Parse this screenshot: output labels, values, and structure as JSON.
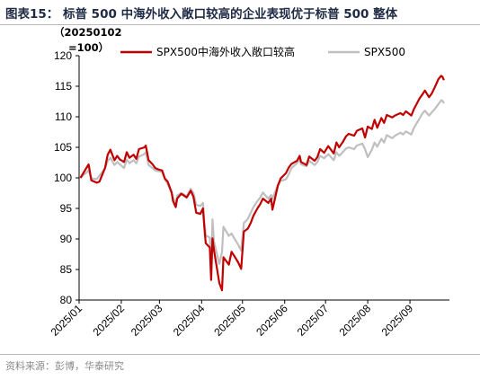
{
  "figure": {
    "title": "图表15：  标普 500 中海外收入敞口较高的企业表现优于标普 500 整体",
    "source": "资料来源：彭博，华泰研究"
  },
  "chart_data": {
    "type": "line",
    "ylabel_lines": [
      "（20250102",
      "=100）"
    ],
    "ylim": [
      80,
      120
    ],
    "yticks": [
      80,
      85,
      90,
      95,
      100,
      105,
      110,
      115,
      120
    ],
    "xlim": [
      "2025-01-01",
      "2025-09-30"
    ],
    "xticks": [
      {
        "date": "2025-01-01",
        "label": "2025/01"
      },
      {
        "date": "2025-02-01",
        "label": "2025/02"
      },
      {
        "date": "2025-03-01",
        "label": "2025/03"
      },
      {
        "date": "2025-04-01",
        "label": "2025/04"
      },
      {
        "date": "2025-05-01",
        "label": "2025/05"
      },
      {
        "date": "2025-06-01",
        "label": "2025/06"
      },
      {
        "date": "2025-07-01",
        "label": "2025/07"
      },
      {
        "date": "2025-08-01",
        "label": "2025/08"
      },
      {
        "date": "2025-09-01",
        "label": "2025/09"
      }
    ],
    "legend_position": "top",
    "series": [
      {
        "name": "SPX500中海外收入敞口较高",
        "color": "#c00000",
        "points": [
          [
            "2025-01-02",
            100.0
          ],
          [
            "2025-01-06",
            101.5
          ],
          [
            "2025-01-08",
            102.2
          ],
          [
            "2025-01-10",
            99.6
          ],
          [
            "2025-01-14",
            99.2
          ],
          [
            "2025-01-16",
            99.4
          ],
          [
            "2025-01-20",
            101.6
          ],
          [
            "2025-01-22",
            103.8
          ],
          [
            "2025-01-24",
            104.6
          ],
          [
            "2025-01-27",
            102.9
          ],
          [
            "2025-01-29",
            103.6
          ],
          [
            "2025-01-31",
            103.0
          ],
          [
            "2025-02-03",
            102.6
          ],
          [
            "2025-02-05",
            104.2
          ],
          [
            "2025-02-07",
            103.3
          ],
          [
            "2025-02-10",
            103.8
          ],
          [
            "2025-02-12",
            103.1
          ],
          [
            "2025-02-14",
            104.7
          ],
          [
            "2025-02-18",
            105.0
          ],
          [
            "2025-02-19",
            105.3
          ],
          [
            "2025-02-21",
            102.9
          ],
          [
            "2025-02-24",
            102.2
          ],
          [
            "2025-02-26",
            101.6
          ],
          [
            "2025-02-28",
            101.4
          ],
          [
            "2025-03-03",
            101.2
          ],
          [
            "2025-03-05",
            99.9
          ],
          [
            "2025-03-07",
            99.4
          ],
          [
            "2025-03-10",
            97.6
          ],
          [
            "2025-03-11",
            96.2
          ],
          [
            "2025-03-13",
            95.2
          ],
          [
            "2025-03-14",
            96.6
          ],
          [
            "2025-03-17",
            97.4
          ],
          [
            "2025-03-19",
            97.1
          ],
          [
            "2025-03-21",
            96.8
          ],
          [
            "2025-03-24",
            97.9
          ],
          [
            "2025-03-26",
            96.9
          ],
          [
            "2025-03-28",
            94.3
          ],
          [
            "2025-03-31",
            94.1
          ],
          [
            "2025-04-02",
            95.0
          ],
          [
            "2025-04-03",
            91.8
          ],
          [
            "2025-04-04",
            89.3
          ],
          [
            "2025-04-07",
            88.6
          ],
          [
            "2025-04-08",
            83.3
          ],
          [
            "2025-04-09",
            90.1
          ],
          [
            "2025-04-10",
            88.2
          ],
          [
            "2025-04-14",
            82.8
          ],
          [
            "2025-04-16",
            81.6
          ],
          [
            "2025-04-17",
            87.0
          ],
          [
            "2025-04-21",
            85.8
          ],
          [
            "2025-04-23",
            87.9
          ],
          [
            "2025-04-25",
            87.2
          ],
          [
            "2025-04-28",
            86.1
          ],
          [
            "2025-04-30",
            85.1
          ],
          [
            "2025-05-02",
            91.2
          ],
          [
            "2025-05-05",
            91.7
          ],
          [
            "2025-05-07",
            92.6
          ],
          [
            "2025-05-09",
            93.8
          ],
          [
            "2025-05-12",
            95.0
          ],
          [
            "2025-05-14",
            95.7
          ],
          [
            "2025-05-16",
            96.6
          ],
          [
            "2025-05-20",
            95.9
          ],
          [
            "2025-05-22",
            96.6
          ],
          [
            "2025-05-23",
            94.8
          ],
          [
            "2025-05-27",
            98.7
          ],
          [
            "2025-05-29",
            99.9
          ],
          [
            "2025-06-02",
            100.8
          ],
          [
            "2025-06-04",
            101.7
          ],
          [
            "2025-06-06",
            102.3
          ],
          [
            "2025-06-10",
            102.8
          ],
          [
            "2025-06-12",
            103.6
          ],
          [
            "2025-06-13",
            102.6
          ],
          [
            "2025-06-17",
            102.1
          ],
          [
            "2025-06-19",
            103.5
          ],
          [
            "2025-06-23",
            102.8
          ],
          [
            "2025-06-25",
            103.4
          ],
          [
            "2025-06-27",
            104.7
          ],
          [
            "2025-06-30",
            104.1
          ],
          [
            "2025-07-03",
            105.2
          ],
          [
            "2025-07-07",
            104.0
          ],
          [
            "2025-07-09",
            105.8
          ],
          [
            "2025-07-11",
            105.0
          ],
          [
            "2025-07-14",
            106.0
          ],
          [
            "2025-07-16",
            106.8
          ],
          [
            "2025-07-18",
            107.2
          ],
          [
            "2025-07-22",
            106.9
          ],
          [
            "2025-07-24",
            107.7
          ],
          [
            "2025-07-28",
            108.1
          ],
          [
            "2025-07-30",
            106.6
          ],
          [
            "2025-08-01",
            108.4
          ],
          [
            "2025-08-04",
            108.0
          ],
          [
            "2025-08-06",
            109.5
          ],
          [
            "2025-08-08",
            108.2
          ],
          [
            "2025-08-11",
            109.8
          ],
          [
            "2025-08-13",
            109.0
          ],
          [
            "2025-08-15",
            110.3
          ],
          [
            "2025-08-19",
            109.9
          ],
          [
            "2025-08-21",
            110.2
          ],
          [
            "2025-08-25",
            110.6
          ],
          [
            "2025-08-27",
            110.3
          ],
          [
            "2025-08-29",
            110.9
          ],
          [
            "2025-09-02",
            110.2
          ],
          [
            "2025-09-04",
            111.3
          ],
          [
            "2025-09-08",
            113.0
          ],
          [
            "2025-09-10",
            113.6
          ],
          [
            "2025-09-12",
            114.3
          ],
          [
            "2025-09-15",
            113.2
          ],
          [
            "2025-09-17",
            113.8
          ],
          [
            "2025-09-19",
            114.7
          ],
          [
            "2025-09-22",
            116.2
          ],
          [
            "2025-09-24",
            116.7
          ],
          [
            "2025-09-25",
            116.5
          ],
          [
            "2025-09-26",
            116.0
          ]
        ]
      },
      {
        "name": "SPX500",
        "color": "#bfbfbf",
        "points": [
          [
            "2025-01-02",
            100.0
          ],
          [
            "2025-01-06",
            100.8
          ],
          [
            "2025-01-08",
            101.2
          ],
          [
            "2025-01-10",
            99.9
          ],
          [
            "2025-01-14",
            99.8
          ],
          [
            "2025-01-16",
            100.4
          ],
          [
            "2025-01-20",
            101.5
          ],
          [
            "2025-01-22",
            102.8
          ],
          [
            "2025-01-24",
            103.3
          ],
          [
            "2025-01-27",
            102.1
          ],
          [
            "2025-01-29",
            102.6
          ],
          [
            "2025-01-31",
            102.2
          ],
          [
            "2025-02-03",
            101.6
          ],
          [
            "2025-02-05",
            103.0
          ],
          [
            "2025-02-07",
            102.4
          ],
          [
            "2025-02-10",
            102.9
          ],
          [
            "2025-02-12",
            102.4
          ],
          [
            "2025-02-14",
            103.5
          ],
          [
            "2025-02-18",
            103.9
          ],
          [
            "2025-02-19",
            104.2
          ],
          [
            "2025-02-21",
            102.1
          ],
          [
            "2025-02-24",
            101.6
          ],
          [
            "2025-02-26",
            101.2
          ],
          [
            "2025-02-28",
            101.1
          ],
          [
            "2025-03-03",
            101.0
          ],
          [
            "2025-03-05",
            99.8
          ],
          [
            "2025-03-07",
            99.0
          ],
          [
            "2025-03-10",
            97.5
          ],
          [
            "2025-03-11",
            96.7
          ],
          [
            "2025-03-13",
            95.8
          ],
          [
            "2025-03-14",
            97.1
          ],
          [
            "2025-03-17",
            97.5
          ],
          [
            "2025-03-19",
            97.3
          ],
          [
            "2025-03-21",
            97.0
          ],
          [
            "2025-03-24",
            98.2
          ],
          [
            "2025-03-26",
            97.5
          ],
          [
            "2025-03-28",
            95.6
          ],
          [
            "2025-03-31",
            95.4
          ],
          [
            "2025-04-02",
            95.9
          ],
          [
            "2025-04-03",
            92.7
          ],
          [
            "2025-04-04",
            90.6
          ],
          [
            "2025-04-07",
            90.2
          ],
          [
            "2025-04-08",
            84.7
          ],
          [
            "2025-04-09",
            93.2
          ],
          [
            "2025-04-10",
            89.6
          ],
          [
            "2025-04-14",
            85.9
          ],
          [
            "2025-04-16",
            87.9
          ],
          [
            "2025-04-17",
            92.0
          ],
          [
            "2025-04-21",
            90.5
          ],
          [
            "2025-04-23",
            90.9
          ],
          [
            "2025-04-25",
            90.1
          ],
          [
            "2025-04-28",
            89.0
          ],
          [
            "2025-04-30",
            88.1
          ],
          [
            "2025-05-02",
            92.6
          ],
          [
            "2025-05-05",
            93.3
          ],
          [
            "2025-05-07",
            94.3
          ],
          [
            "2025-05-09",
            95.2
          ],
          [
            "2025-05-12",
            96.2
          ],
          [
            "2025-05-14",
            96.8
          ],
          [
            "2025-05-16",
            97.6
          ],
          [
            "2025-05-20",
            96.6
          ],
          [
            "2025-05-22",
            97.2
          ],
          [
            "2025-05-23",
            96.6
          ],
          [
            "2025-05-27",
            98.8
          ],
          [
            "2025-05-29",
            99.5
          ],
          [
            "2025-06-02",
            99.8
          ],
          [
            "2025-06-04",
            100.6
          ],
          [
            "2025-06-06",
            101.6
          ],
          [
            "2025-06-10",
            102.4
          ],
          [
            "2025-06-12",
            103.1
          ],
          [
            "2025-06-13",
            102.2
          ],
          [
            "2025-06-17",
            101.9
          ],
          [
            "2025-06-19",
            102.8
          ],
          [
            "2025-06-23",
            102.1
          ],
          [
            "2025-06-25",
            102.6
          ],
          [
            "2025-06-27",
            103.6
          ],
          [
            "2025-06-30",
            103.2
          ],
          [
            "2025-07-03",
            103.9
          ],
          [
            "2025-07-07",
            102.9
          ],
          [
            "2025-07-09",
            104.2
          ],
          [
            "2025-07-11",
            103.6
          ],
          [
            "2025-07-14",
            104.3
          ],
          [
            "2025-07-16",
            104.8
          ],
          [
            "2025-07-18",
            105.0
          ],
          [
            "2025-07-22",
            104.7
          ],
          [
            "2025-07-24",
            105.3
          ],
          [
            "2025-07-28",
            105.6
          ],
          [
            "2025-07-30",
            104.7
          ],
          [
            "2025-08-01",
            103.4
          ],
          [
            "2025-08-04",
            104.6
          ],
          [
            "2025-08-06",
            105.8
          ],
          [
            "2025-08-08",
            105.1
          ],
          [
            "2025-08-11",
            106.4
          ],
          [
            "2025-08-13",
            105.8
          ],
          [
            "2025-08-15",
            107.0
          ],
          [
            "2025-08-19",
            106.5
          ],
          [
            "2025-08-21",
            106.9
          ],
          [
            "2025-08-25",
            107.4
          ],
          [
            "2025-08-27",
            107.1
          ],
          [
            "2025-08-29",
            107.6
          ],
          [
            "2025-09-02",
            107.1
          ],
          [
            "2025-09-04",
            108.2
          ],
          [
            "2025-09-08",
            109.7
          ],
          [
            "2025-09-10",
            110.5
          ],
          [
            "2025-09-12",
            111.0
          ],
          [
            "2025-09-15",
            110.2
          ],
          [
            "2025-09-17",
            110.7
          ],
          [
            "2025-09-19",
            111.2
          ],
          [
            "2025-09-22",
            112.1
          ],
          [
            "2025-09-24",
            112.7
          ],
          [
            "2025-09-25",
            112.6
          ],
          [
            "2025-09-26",
            112.2
          ]
        ]
      }
    ]
  }
}
